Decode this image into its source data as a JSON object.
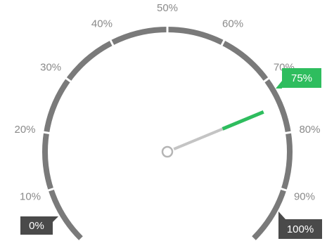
{
  "chart_data": {
    "type": "gauge",
    "min": 0,
    "max": 100,
    "value": 75,
    "unit": "%",
    "ticks": [
      {
        "value": 0,
        "label": "0%"
      },
      {
        "value": 10,
        "label": "10%"
      },
      {
        "value": 20,
        "label": "20%"
      },
      {
        "value": 30,
        "label": "30%"
      },
      {
        "value": 40,
        "label": "40%"
      },
      {
        "value": 50,
        "label": "50%"
      },
      {
        "value": 60,
        "label": "60%"
      },
      {
        "value": 70,
        "label": "70%"
      },
      {
        "value": 80,
        "label": "80%"
      },
      {
        "value": 90,
        "label": "90%"
      },
      {
        "value": 100,
        "label": "100%"
      }
    ],
    "min_badge": "0%",
    "max_badge": "100%",
    "value_badge": "75%"
  },
  "colors": {
    "arc": "#7a7a7a",
    "needle_tail": "#c4c4c4",
    "needle_head": "#2ebd5e",
    "value_badge_bg": "#2ebd5e",
    "end_badge_bg": "#4a4a4a",
    "tick_text": "#8a8a8a"
  }
}
